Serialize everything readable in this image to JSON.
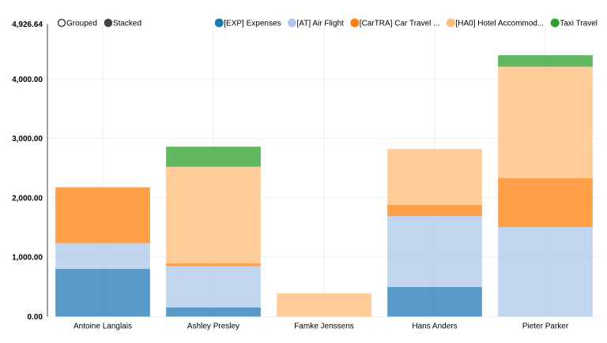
{
  "chart_data": {
    "type": "bar",
    "stacked": true,
    "controls": [
      {
        "label": "Grouped",
        "selected": false
      },
      {
        "label": "Stacked",
        "selected": true
      }
    ],
    "categories": [
      "Antoine Langlais",
      "Ashley Presley",
      "Famke Jenssens",
      "Hans Anders",
      "Pieter Parker"
    ],
    "series": [
      {
        "name": "[EXP] Expenses",
        "color": "#1f77b4",
        "values": [
          803,
          153,
          0,
          498,
          0
        ]
      },
      {
        "name": "[AT] Air Flight",
        "color": "#aec7e8",
        "values": [
          432,
          697,
          0,
          1195,
          1507
        ]
      },
      {
        "name": "[CarTRA] Car Travel ...",
        "color": "#ff7f0e",
        "values": [
          943,
          46,
          0,
          186,
          824
        ]
      },
      {
        "name": "[HA0] Hotel Accommod...",
        "color": "#ffbb78",
        "values": [
          0,
          1627,
          392,
          943,
          1879
        ]
      },
      {
        "name": "Taxi Travel",
        "color": "#2ca02c",
        "values": [
          0,
          339,
          0,
          0,
          192
        ]
      }
    ],
    "ylim": [
      0,
      4926.64
    ],
    "y_max_label": "4,926.64",
    "yticks": [
      "0.00",
      "1,000.00",
      "2,000.00",
      "3,000.00",
      "4,000.00"
    ],
    "ytick_values": [
      0,
      1000,
      2000,
      3000,
      4000
    ],
    "grid": true,
    "legend_position": "top-right"
  }
}
